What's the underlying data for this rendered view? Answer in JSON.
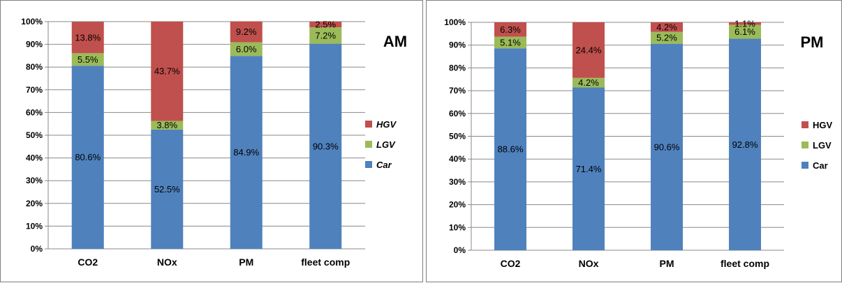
{
  "chart_data": [
    {
      "type": "bar",
      "stacked": "percent",
      "title": "AM",
      "categories": [
        "CO2",
        "NOx",
        "PM",
        "fleet comp"
      ],
      "series": [
        {
          "name": "Car",
          "color": "#4F81BD",
          "values": [
            80.6,
            52.5,
            84.9,
            90.3
          ],
          "labels": [
            "80.6%",
            "52.5%",
            "84.9%",
            "90.3%"
          ]
        },
        {
          "name": "LGV",
          "color": "#9BBB59",
          "values": [
            5.5,
            3.8,
            6.0,
            7.2
          ],
          "labels": [
            "5.5%",
            "3.8%",
            "6.0%",
            "7.2%"
          ]
        },
        {
          "name": "HGV",
          "color": "#C0504D",
          "values": [
            13.8,
            43.7,
            9.2,
            2.5
          ],
          "labels": [
            "13.8%",
            "43.7%",
            "9.2%",
            "2.5%"
          ]
        }
      ],
      "ylim": [
        0,
        100
      ],
      "yticks": [
        "0%",
        "10%",
        "20%",
        "30%",
        "40%",
        "50%",
        "60%",
        "70%",
        "80%",
        "90%",
        "100%"
      ],
      "grid": true,
      "legend": "right",
      "legend_italic": true
    },
    {
      "type": "bar",
      "stacked": "percent",
      "title": "PM",
      "categories": [
        "CO2",
        "NOx",
        "PM",
        "fleet comp"
      ],
      "series": [
        {
          "name": "Car",
          "color": "#4F81BD",
          "values": [
            88.6,
            71.4,
            90.6,
            92.8
          ],
          "labels": [
            "88.6%",
            "71.4%",
            "90.6%",
            "92.8%"
          ]
        },
        {
          "name": "LGV",
          "color": "#9BBB59",
          "values": [
            5.1,
            4.2,
            5.2,
            6.1
          ],
          "labels": [
            "5.1%",
            "4.2%",
            "5.2%",
            "6.1%"
          ]
        },
        {
          "name": "HGV",
          "color": "#C0504D",
          "values": [
            6.3,
            24.4,
            4.2,
            1.1
          ],
          "labels": [
            "6.3%",
            "24.4%",
            "4.2%",
            "1.1%"
          ]
        }
      ],
      "ylim": [
        0,
        100
      ],
      "yticks": [
        "0%",
        "10%",
        "20%",
        "30%",
        "40%",
        "50%",
        "60%",
        "70%",
        "80%",
        "90%",
        "100%"
      ],
      "grid": true,
      "legend": "right",
      "legend_italic": false
    }
  ]
}
